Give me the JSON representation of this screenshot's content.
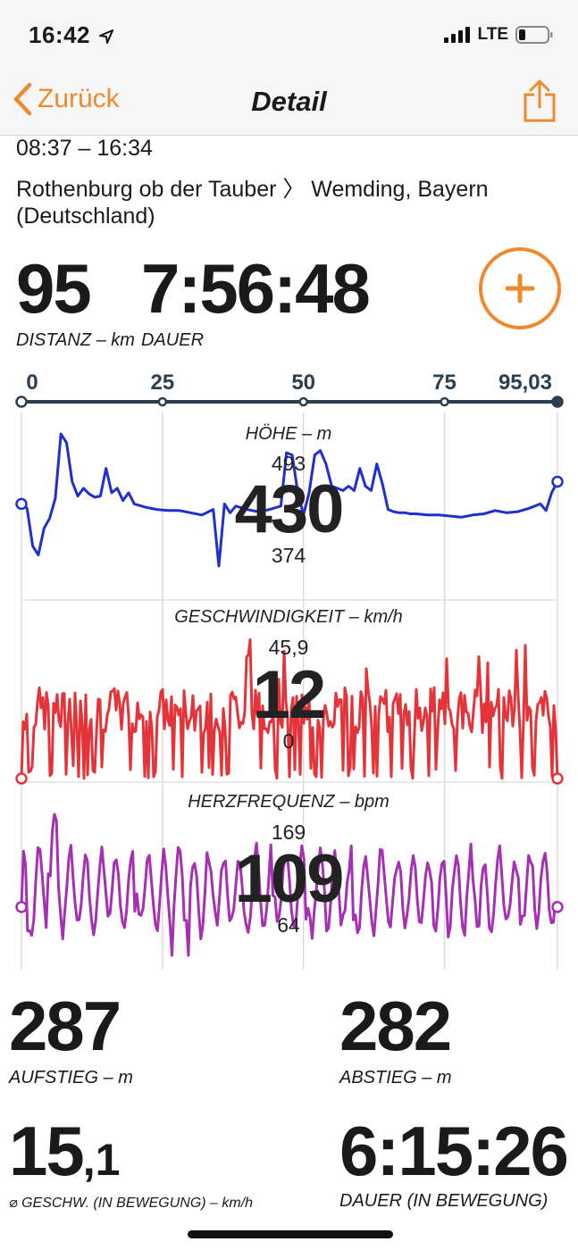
{
  "status_bar": {
    "time": "16:42",
    "network": "LTE"
  },
  "nav": {
    "back_label": "Zurück",
    "title": "Detail",
    "share_icon": "share-icon"
  },
  "trip": {
    "time_range": "08:37 – 16:34",
    "route_line1": "Rothenburg ob der Tauber 〉 Wemding, Bayern",
    "route_line2": "(Deutschland)"
  },
  "summary": {
    "distance": {
      "value": "95",
      "label": "DISTANZ – km"
    },
    "duration": {
      "value": "7:56:48",
      "label": "DAUER"
    }
  },
  "colors": {
    "accent": "#ee8a2e",
    "elevation": "#1f2fd0",
    "speed": "#e4343a",
    "heart_rate": "#a62fb3",
    "axis": "#2c3e50"
  },
  "chart_data": {
    "type": "line",
    "x_ticks": [
      "0",
      "25",
      "50",
      "75",
      "95,03"
    ],
    "x_tick_values": [
      0,
      25,
      50,
      75,
      95.03
    ],
    "xlim": [
      0,
      95.03
    ],
    "panels": [
      {
        "name": "HÖHE – m",
        "max_label": "493",
        "min_label": "374",
        "current": "430",
        "ylim": [
          374,
          493
        ],
        "x": [
          0,
          1,
          2,
          3,
          4,
          5,
          6,
          7,
          8,
          9,
          10,
          11,
          12,
          13,
          14,
          15,
          16,
          17,
          18,
          19,
          20,
          22,
          24,
          26,
          28,
          30,
          32,
          34,
          35,
          36,
          37,
          38,
          40,
          42,
          44,
          46,
          47,
          48,
          49,
          50,
          51,
          52,
          53,
          54,
          55,
          56,
          57,
          58,
          59,
          60,
          61,
          62,
          63,
          64,
          65,
          66,
          67,
          68,
          69,
          70,
          72,
          74,
          76,
          78,
          80,
          82,
          84,
          86,
          88,
          90,
          92,
          93,
          94,
          95.03
        ],
        "values": [
          430,
          426,
          392,
          384,
          408,
          417,
          435,
          493,
          485,
          450,
          437,
          444,
          439,
          436,
          437,
          462,
          440,
          444,
          433,
          440,
          430,
          427,
          425,
          424,
          424,
          422,
          420,
          425,
          374,
          430,
          422,
          428,
          425,
          423,
          425,
          428,
          476,
          474,
          440,
          420,
          440,
          474,
          478,
          466,
          446,
          444,
          442,
          446,
          442,
          462,
          446,
          442,
          466,
          448,
          425,
          423,
          422,
          422,
          421,
          421,
          420,
          420,
          419,
          418,
          420,
          421,
          424,
          422,
          423,
          426,
          430,
          424,
          440,
          450
        ]
      },
      {
        "name": "GESCHWINDIGKEIT – km/h",
        "max_label": "45,9",
        "min_label": "0",
        "current": "12",
        "ylim": [
          0,
          45.9
        ]
      },
      {
        "name": "HERZFREQUENZ – bpm",
        "max_label": "169",
        "min_label": "64",
        "current": "109",
        "ylim": [
          64,
          169
        ]
      }
    ]
  },
  "stats": {
    "ascent": {
      "value": "287",
      "label": "AUFSTIEG – m"
    },
    "descent": {
      "value": "282",
      "label": "ABSTIEG – m"
    },
    "avg_speed": {
      "value_int": "15",
      "value_frac": ",1",
      "label": "⌀ GESCHW. (IN BEWEGUNG) – km/h"
    },
    "moving_time": {
      "value": "6:15:26",
      "label": "DAUER (IN BEWEGUNG)"
    }
  }
}
